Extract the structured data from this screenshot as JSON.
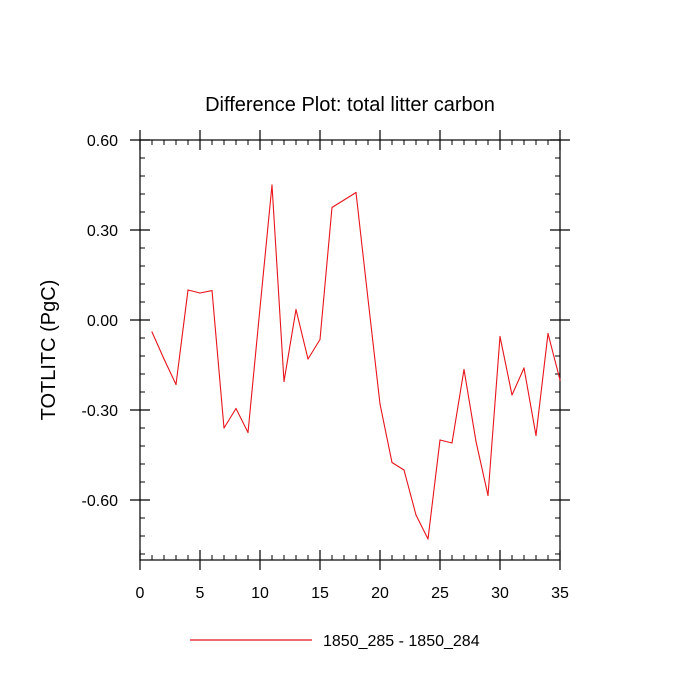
{
  "chart_data": {
    "type": "line",
    "title": "Difference Plot: total litter carbon",
    "xlabel": "",
    "ylabel": "TOTLITC  (PgC)",
    "xlim": [
      0,
      35
    ],
    "ylim": [
      -0.8,
      0.6
    ],
    "x_ticks": [
      0,
      5,
      10,
      15,
      20,
      25,
      30,
      35
    ],
    "x_tick_labels": [
      "0",
      "5",
      "10",
      "15",
      "20",
      "25",
      "30",
      "35"
    ],
    "y_ticks": [
      0.6,
      0.3,
      0.0,
      -0.3,
      -0.6
    ],
    "y_tick_labels": [
      "0.60",
      "0.30",
      "0.00",
      "-0.30",
      "-0.60"
    ],
    "grid": false,
    "legend_position": "bottom-center",
    "series": [
      {
        "name": "1850_285 - 1850_284",
        "color": "#e8141b",
        "x": [
          1,
          2,
          3,
          4,
          5,
          6,
          7,
          8,
          9,
          10,
          11,
          12,
          13,
          14,
          15,
          16,
          17,
          18,
          19,
          20,
          21,
          22,
          23,
          24,
          25,
          26,
          27,
          28,
          29,
          30,
          31,
          32,
          33,
          34,
          35
        ],
        "values": [
          -0.04,
          -0.13,
          -0.215,
          0.1,
          0.09,
          0.098,
          -0.36,
          -0.295,
          -0.375,
          0.04,
          0.45,
          -0.205,
          0.035,
          -0.13,
          -0.065,
          0.375,
          0.4,
          0.425,
          0.07,
          -0.28,
          -0.475,
          -0.5,
          -0.65,
          -0.73,
          -0.4,
          -0.41,
          -0.165,
          -0.405,
          -0.585,
          -0.055,
          -0.25,
          -0.16,
          -0.385,
          -0.045,
          -0.2
        ]
      }
    ]
  }
}
